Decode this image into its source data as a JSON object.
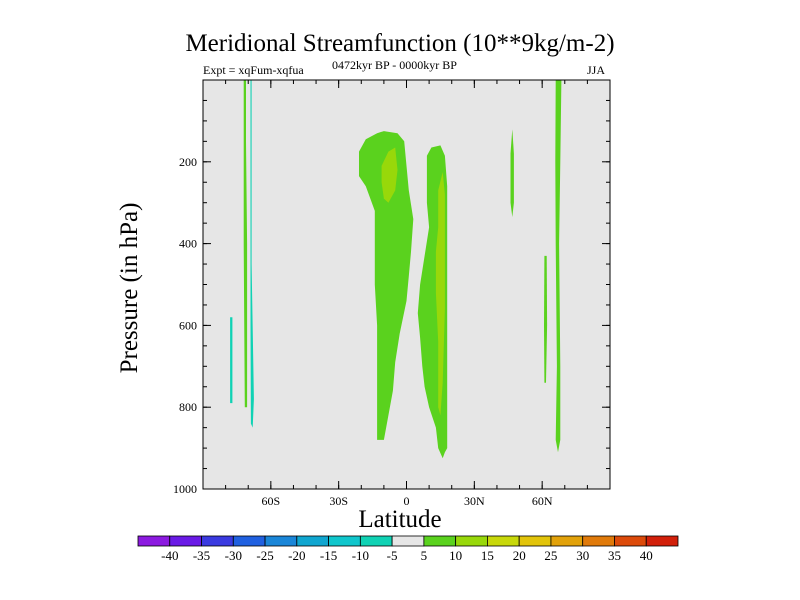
{
  "header": {
    "title": "Meridional Streamfunction (10**9kg/m-2)",
    "experiment": "Expt = xqFum-xqfua",
    "period": "0472kyr BP - 0000kyr BP",
    "season": "JJA"
  },
  "chart_data": {
    "type": "heatmap",
    "title": "Meridional Streamfunction (10**9kg/m-2)",
    "xlabel": "Latitude",
    "ylabel": "Pressure (in hPa)",
    "xlim": [
      -90,
      90
    ],
    "ylim": [
      1000,
      0
    ],
    "x_ticks": [
      {
        "value": -60,
        "label": "60S"
      },
      {
        "value": -30,
        "label": "30S"
      },
      {
        "value": 0,
        "label": "0"
      },
      {
        "value": 30,
        "label": "30N"
      },
      {
        "value": 60,
        "label": "60N"
      }
    ],
    "y_ticks": [
      {
        "value": 200,
        "label": "200"
      },
      {
        "value": 400,
        "label": "400"
      },
      {
        "value": 600,
        "label": "600"
      },
      {
        "value": 800,
        "label": "800"
      },
      {
        "value": 1000,
        "label": "1000"
      }
    ],
    "background_color": "#e6e6e6",
    "colorbar": {
      "labels": [
        "-40",
        "-35",
        "-30",
        "-25",
        "-20",
        "-15",
        "-10",
        "-5",
        "5",
        "10",
        "15",
        "20",
        "25",
        "30",
        "35",
        "40"
      ],
      "colors": [
        "#8c1ae0",
        "#6a1ae6",
        "#3a3ae0",
        "#2060e0",
        "#1a86d8",
        "#10a6d0",
        "#10c6cc",
        "#10d2b4",
        "#e6e6e6",
        "#5ad21e",
        "#98d80a",
        "#c8d80a",
        "#e2c40a",
        "#e2a20a",
        "#e07a0a",
        "#dc4a0a",
        "#d2200a"
      ]
    },
    "regions": [
      {
        "name": "sh-polar-cyan",
        "level": -7,
        "color": "#10d2b4",
        "points": [
          [
            -78,
            580
          ],
          [
            -77,
            580
          ],
          [
            -77,
            790
          ],
          [
            -78,
            790
          ]
        ]
      },
      {
        "name": "sh-70s-green-strip",
        "level": 7,
        "color": "#5ad21e",
        "points": [
          [
            -72,
            0
          ],
          [
            -71,
            0
          ],
          [
            -71,
            150
          ],
          [
            -70.5,
            400
          ],
          [
            -70.5,
            800
          ],
          [
            -71.5,
            800
          ],
          [
            -72,
            400
          ]
        ]
      },
      {
        "name": "sh-68s-cyan-strip",
        "level": -7,
        "color": "#10d2b4",
        "points": [
          [
            -69,
            0
          ],
          [
            -68.5,
            0
          ],
          [
            -68.5,
            450
          ],
          [
            -67.5,
            780
          ],
          [
            -68,
            850
          ],
          [
            -68.8,
            840
          ],
          [
            -69,
            600
          ]
        ]
      },
      {
        "name": "tropical-south-green",
        "level": 7,
        "color": "#5ad21e",
        "points": [
          [
            -21,
            175
          ],
          [
            -18,
            145
          ],
          [
            -13,
            130
          ],
          [
            -10,
            125
          ],
          [
            -4,
            130
          ],
          [
            -1,
            150
          ],
          [
            0,
            210
          ],
          [
            1,
            270
          ],
          [
            3,
            340
          ],
          [
            2,
            420
          ],
          [
            1,
            480
          ],
          [
            0,
            540
          ],
          [
            -3,
            620
          ],
          [
            -5,
            690
          ],
          [
            -6,
            760
          ],
          [
            -8,
            820
          ],
          [
            -10,
            880
          ],
          [
            -13,
            880
          ],
          [
            -13,
            700
          ],
          [
            -13,
            600
          ],
          [
            -14,
            500
          ],
          [
            -14,
            400
          ],
          [
            -14,
            320
          ],
          [
            -18,
            260
          ],
          [
            -21,
            235
          ]
        ]
      },
      {
        "name": "tropical-south-yellow",
        "level": 12,
        "color": "#98d80a",
        "points": [
          [
            -11,
            210
          ],
          [
            -8,
            175
          ],
          [
            -5,
            165
          ],
          [
            -4,
            220
          ],
          [
            -5,
            270
          ],
          [
            -8,
            300
          ],
          [
            -10,
            290
          ],
          [
            -11,
            250
          ]
        ]
      },
      {
        "name": "tropical-north-green",
        "level": 7,
        "color": "#5ad21e",
        "points": [
          [
            9,
            185
          ],
          [
            11,
            165
          ],
          [
            15,
            160
          ],
          [
            17,
            185
          ],
          [
            18,
            260
          ],
          [
            18,
            400
          ],
          [
            18,
            600
          ],
          [
            18,
            800
          ],
          [
            18,
            900
          ],
          [
            17,
            910
          ],
          [
            16,
            925
          ],
          [
            14,
            900
          ],
          [
            13,
            850
          ],
          [
            10,
            800
          ],
          [
            8,
            750
          ],
          [
            7,
            700
          ],
          [
            6,
            630
          ],
          [
            5,
            570
          ],
          [
            6,
            500
          ],
          [
            8,
            430
          ],
          [
            10,
            360
          ],
          [
            9,
            300
          ],
          [
            9,
            240
          ]
        ]
      },
      {
        "name": "tropical-north-yellow",
        "level": 12,
        "color": "#98d80a",
        "points": [
          [
            14,
            270
          ],
          [
            16,
            225
          ],
          [
            17,
            280
          ],
          [
            17,
            400
          ],
          [
            17,
            560
          ],
          [
            16,
            740
          ],
          [
            15,
            820
          ],
          [
            14,
            800
          ],
          [
            14,
            640
          ],
          [
            13,
            520
          ],
          [
            13,
            420
          ],
          [
            14,
            360
          ]
        ]
      },
      {
        "name": "nh-45n-green",
        "level": 7,
        "color": "#5ad21e",
        "points": [
          [
            46,
            180
          ],
          [
            46.8,
            120
          ],
          [
            47.5,
            180
          ],
          [
            47.5,
            300
          ],
          [
            46.8,
            335
          ],
          [
            46,
            300
          ]
        ]
      },
      {
        "name": "nh-60n-green-thin",
        "level": 7,
        "color": "#5ad21e",
        "points": [
          [
            61,
            430
          ],
          [
            62,
            430
          ],
          [
            62.2,
            600
          ],
          [
            61.7,
            740
          ],
          [
            61,
            740
          ],
          [
            60.8,
            600
          ]
        ]
      },
      {
        "name": "nh-67n-green",
        "level": 7,
        "color": "#5ad21e",
        "points": [
          [
            66,
            0
          ],
          [
            68.5,
            0
          ],
          [
            68,
            200
          ],
          [
            67.5,
            400
          ],
          [
            68,
            700
          ],
          [
            68,
            880
          ],
          [
            67,
            910
          ],
          [
            66,
            880
          ],
          [
            66.5,
            700
          ],
          [
            66,
            400
          ],
          [
            65.8,
            200
          ]
        ]
      }
    ]
  }
}
